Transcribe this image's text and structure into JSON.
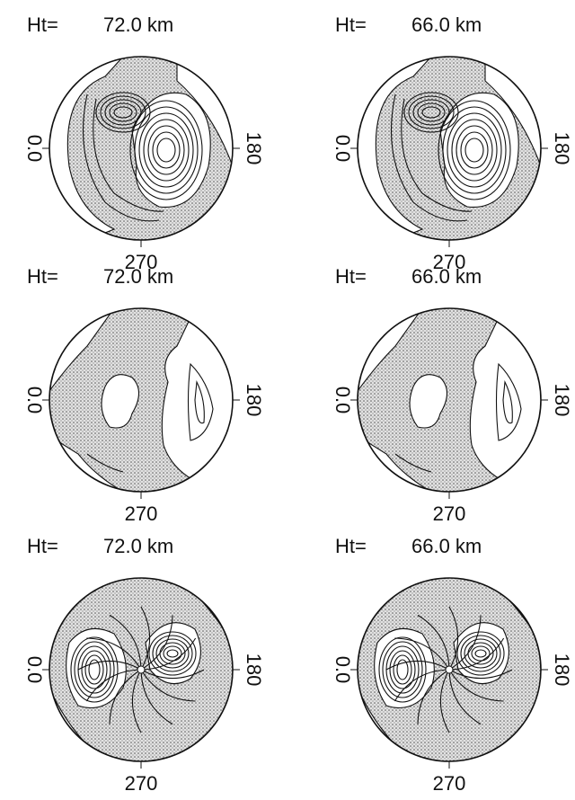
{
  "panels": [
    {
      "label": "Ht=",
      "height": "72.0 km",
      "left": "0.0",
      "right": "180",
      "bottom": "270"
    },
    {
      "label": "Ht=",
      "height": "66.0 km",
      "left": "0.0",
      "right": "180",
      "bottom": "270"
    },
    {
      "label": "Ht=",
      "height": "72.0 km",
      "left": "0.0",
      "right": "180",
      "bottom": "270"
    },
    {
      "label": "Ht=",
      "height": "66.0 km",
      "left": "0.0",
      "right": "180",
      "bottom": "270"
    },
    {
      "label": "Ht=",
      "height": "72.0 km",
      "left": "0.0",
      "right": "180",
      "bottom": "270"
    },
    {
      "label": "Ht=",
      "height": "66.0 km",
      "left": "0.0",
      "right": "180",
      "bottom": "270"
    }
  ]
}
